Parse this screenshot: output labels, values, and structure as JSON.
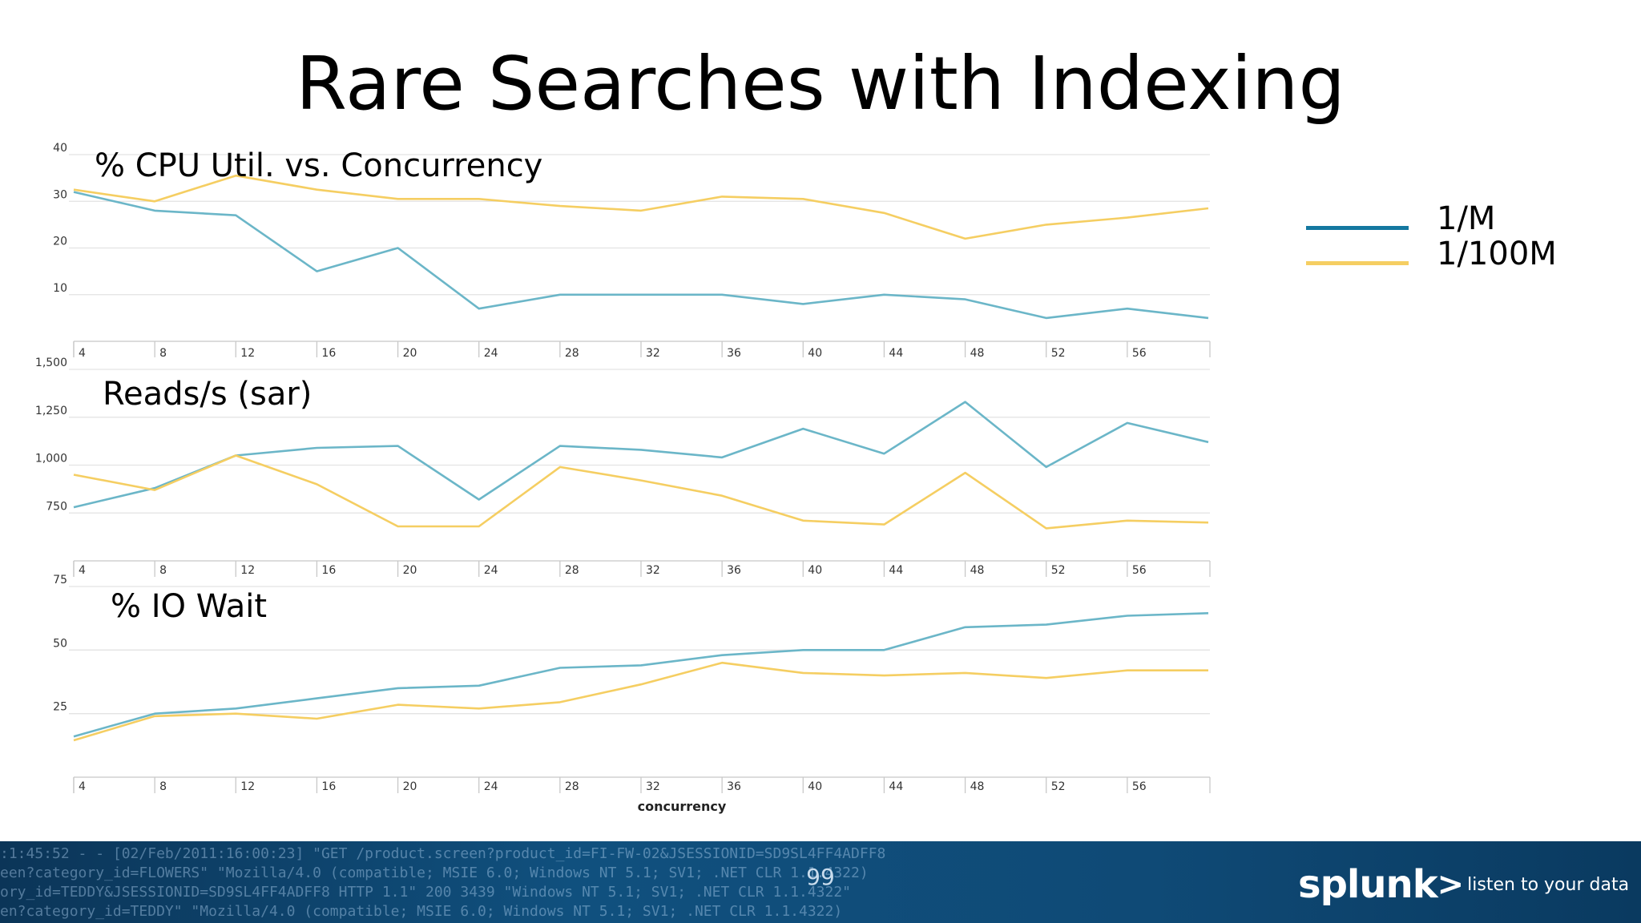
{
  "slide": {
    "title": "Rare Searches with Indexing",
    "page_number": "99"
  },
  "legend": [
    {
      "label": "1/M",
      "color": "#1478a0"
    },
    {
      "label": "1/100M",
      "color": "#f5ce62"
    }
  ],
  "footer": {
    "log_lines": [
      ":1:45:52 - - [02/Feb/2011:16:00:23] \"GET /product.screen?product_id=FI-FW-02&JSESSIONID=SD9SL4FF4ADFF8",
      "een?category_id=FLOWERS\" \"Mozilla/4.0 (compatible; MSIE 6.0; Windows NT 5.1; SV1; .NET CLR 1.1.4322)",
      "ory_id=TEDDY&JSESSIONID=SD9SL4FF4ADFF8 HTTP 1.1\" 200 3439 \"Windows NT 5.1; SV1; .NET CLR 1.1.4322\"",
      "en?category_id=TEDDY\" \"Mozilla/4.0 (compatible; MSIE 6.0; Windows NT 5.1; SV1; .NET CLR 1.1.4322)"
    ],
    "logo_word": "splunk",
    "logo_arrow": ">",
    "logo_tagline": "listen to your data"
  },
  "chart_data": [
    {
      "type": "line",
      "title": "% CPU Util. vs. Concurrency",
      "xlabel": "",
      "ylabel": "",
      "x": [
        4,
        8,
        12,
        16,
        20,
        24,
        28,
        32,
        36,
        40,
        44,
        48,
        52,
        56,
        60
      ],
      "xticks": [
        "4",
        "8",
        "12",
        "16",
        "20",
        "24",
        "28",
        "32",
        "36",
        "40",
        "44",
        "48",
        "52",
        "56"
      ],
      "yticks": [
        "10",
        "20",
        "30",
        "40"
      ],
      "ytick_values": [
        10,
        20,
        30,
        40
      ],
      "ylim": [
        0,
        40
      ],
      "xlim": [
        4,
        60
      ],
      "grid": true,
      "legend_position": "right",
      "series": [
        {
          "name": "1/M",
          "color": "#6bb6c8",
          "values": [
            32,
            28,
            27,
            15,
            20,
            7,
            10,
            10,
            10,
            8,
            10,
            9,
            5,
            7,
            5
          ]
        },
        {
          "name": "1/100M",
          "color": "#f5ce62",
          "values": [
            32.5,
            30,
            35.5,
            32.5,
            30.5,
            30.5,
            29,
            28,
            31,
            30.5,
            27.5,
            22,
            25,
            26.5,
            28.5
          ]
        }
      ]
    },
    {
      "type": "line",
      "title": "Reads/s (sar)",
      "xlabel": "",
      "ylabel": "",
      "x": [
        4,
        8,
        12,
        16,
        20,
        24,
        28,
        32,
        36,
        40,
        44,
        48,
        52,
        56,
        60
      ],
      "xticks": [
        "4",
        "8",
        "12",
        "16",
        "20",
        "24",
        "28",
        "32",
        "36",
        "40",
        "44",
        "48",
        "52",
        "56"
      ],
      "yticks": [
        "750",
        "1,000",
        "1,250",
        "1,500"
      ],
      "ytick_values": [
        750,
        1000,
        1250,
        1500
      ],
      "ylim": [
        500,
        1500
      ],
      "xlim": [
        4,
        60
      ],
      "grid": true,
      "series": [
        {
          "name": "1/M",
          "color": "#6bb6c8",
          "values": [
            780,
            880,
            1050,
            1090,
            1100,
            820,
            1100,
            1080,
            1040,
            1190,
            1060,
            1330,
            990,
            1220,
            1120
          ]
        },
        {
          "name": "1/100M",
          "color": "#f5ce62",
          "values": [
            950,
            870,
            1050,
            900,
            680,
            680,
            990,
            920,
            840,
            710,
            690,
            960,
            670,
            710,
            700
          ]
        }
      ]
    },
    {
      "type": "line",
      "title": "% IO Wait",
      "xlabel": "concurrency",
      "ylabel": "",
      "x": [
        4,
        8,
        12,
        16,
        20,
        24,
        28,
        32,
        36,
        40,
        44,
        48,
        52,
        56,
        60
      ],
      "xticks": [
        "4",
        "8",
        "12",
        "16",
        "20",
        "24",
        "28",
        "32",
        "36",
        "40",
        "44",
        "48",
        "52",
        "56"
      ],
      "yticks": [
        "25",
        "50",
        "75"
      ],
      "ytick_values": [
        25,
        50,
        75
      ],
      "ylim": [
        0,
        75
      ],
      "xlim": [
        4,
        60
      ],
      "grid": true,
      "series": [
        {
          "name": "1/M",
          "color": "#6bb6c8",
          "values": [
            16,
            25,
            27,
            31,
            35,
            36,
            43,
            44,
            48,
            50,
            50,
            59,
            60,
            63.5,
            64.5
          ]
        },
        {
          "name": "1/100M",
          "color": "#f5ce62",
          "values": [
            14.5,
            24,
            25,
            23,
            28.5,
            27,
            29.5,
            36.5,
            45,
            41,
            40,
            41,
            39,
            42,
            42
          ]
        }
      ]
    }
  ]
}
